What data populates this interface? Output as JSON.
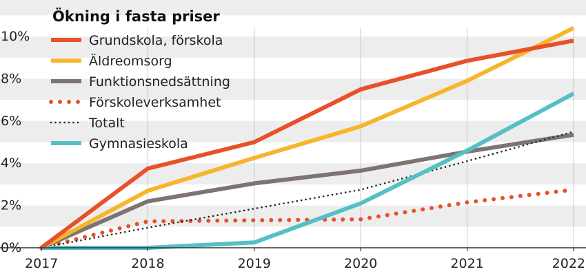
{
  "chart_data": {
    "type": "line",
    "title": "Ökning i fasta priser",
    "xlabel": "",
    "ylabel": "",
    "x": [
      "2017",
      "2018",
      "2019",
      "2020",
      "2021",
      "2022"
    ],
    "ylim": [
      0,
      10.5
    ],
    "yticks": [
      0,
      2,
      4,
      6,
      8,
      10
    ],
    "ytick_labels": [
      "0%",
      "2%",
      "4%",
      "6%",
      "8%",
      "10%"
    ],
    "legend_position": "top-left",
    "series": [
      {
        "name": "Grundskola, förskola",
        "color": "#e8502a",
        "style": "solid",
        "values": [
          0,
          3.75,
          5.0,
          7.5,
          8.85,
          9.8
        ]
      },
      {
        "name": "Äldreomsorg",
        "color": "#f7b52c",
        "style": "solid",
        "values": [
          0,
          2.7,
          4.25,
          5.75,
          7.9,
          10.4
        ]
      },
      {
        "name": "Funktionsnedsättning",
        "color": "#7d7470",
        "style": "solid",
        "values": [
          0,
          2.2,
          3.05,
          3.65,
          4.55,
          5.35
        ]
      },
      {
        "name": "Förskoleverksamhet",
        "color": "#e8502a",
        "style": "dotted",
        "values": [
          0,
          1.25,
          1.3,
          1.35,
          2.15,
          2.75
        ]
      },
      {
        "name": "Totalt",
        "color": "#222222",
        "style": "dotted",
        "values": [
          0,
          0.95,
          1.85,
          2.75,
          4.1,
          5.5
        ]
      },
      {
        "name": "Gymnasieskola",
        "color": "#55bfc6",
        "style": "solid",
        "values": [
          0,
          0,
          0.25,
          2.1,
          4.6,
          7.3
        ]
      }
    ]
  }
}
